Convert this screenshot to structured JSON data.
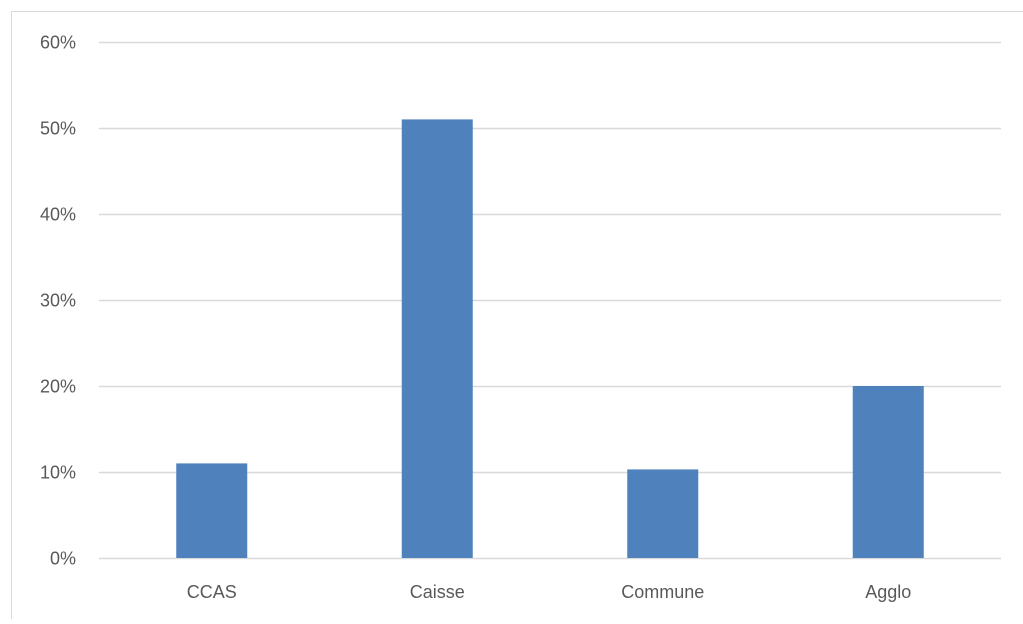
{
  "colors": {
    "bar": "#4f81bd",
    "grid": "#d9d9d9",
    "axis_text": "#595959",
    "frame": "#d9d9d9"
  },
  "chart_data": {
    "type": "bar",
    "title": "",
    "xlabel": "",
    "ylabel": "",
    "categories": [
      "CCAS",
      "Caisse",
      "Commune",
      "Agglo"
    ],
    "values": [
      0.11,
      0.51,
      0.103,
      0.2
    ],
    "ylim": [
      0,
      0.6
    ],
    "yticks": [
      0,
      0.1,
      0.2,
      0.3,
      0.4,
      0.5,
      0.6
    ],
    "ytick_labels": [
      "0%",
      "10%",
      "20%",
      "30%",
      "40%",
      "50%",
      "60%"
    ],
    "grid": true,
    "legend": false
  }
}
